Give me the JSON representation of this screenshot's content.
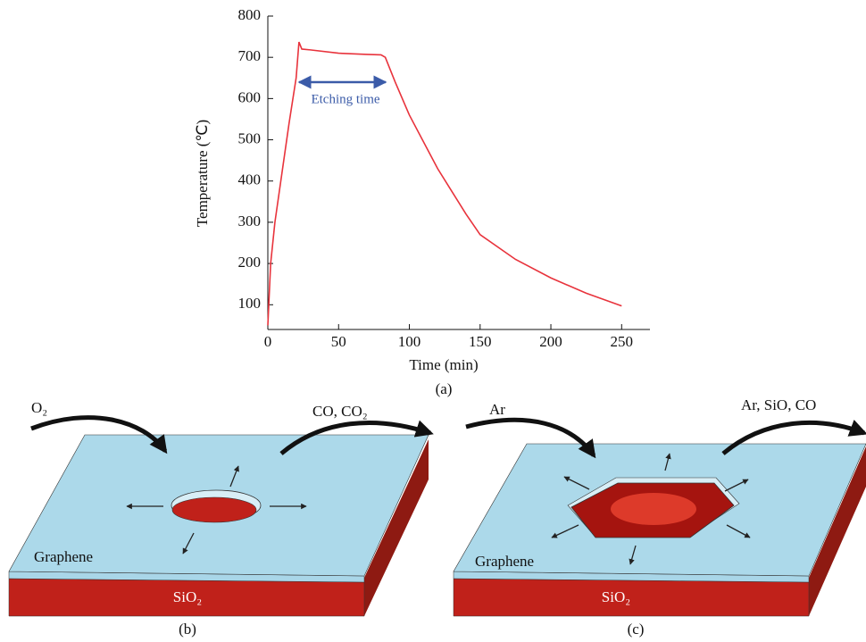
{
  "chart_data": {
    "type": "line",
    "ylabel": "Temperature (℃)",
    "xlabel": "Time (min)",
    "caption": "(a)",
    "annotation": "Etching time",
    "xlim": [
      0,
      270
    ],
    "ylim": [
      40,
      800
    ],
    "xticks": [
      0,
      50,
      100,
      150,
      200,
      250
    ],
    "yticks": [
      100,
      200,
      300,
      400,
      500,
      600,
      700,
      800
    ],
    "series": [
      {
        "color": "#e8333c",
        "x": [
          0,
          2,
          5,
          10,
          15,
          20,
          22,
          24,
          30,
          50,
          70,
          80,
          83,
          90,
          100,
          110,
          120,
          130,
          140,
          150,
          175,
          200,
          225,
          250
        ],
        "values": [
          50,
          200,
          300,
          420,
          540,
          650,
          737,
          720,
          718,
          710,
          707,
          706,
          700,
          640,
          560,
          495,
          430,
          375,
          320,
          270,
          210,
          165,
          128,
          97
        ]
      }
    ]
  },
  "diagram_b": {
    "gas_in": "O₂",
    "gas_out": "CO, CO₂",
    "layer": "Graphene",
    "substrate": "SiO₂",
    "caption": "(b)"
  },
  "diagram_c": {
    "gas_in": "Ar",
    "gas_out": "Ar, SiO, CO",
    "layer": "Graphene",
    "substrate": "SiO₂",
    "caption": "(c)"
  }
}
